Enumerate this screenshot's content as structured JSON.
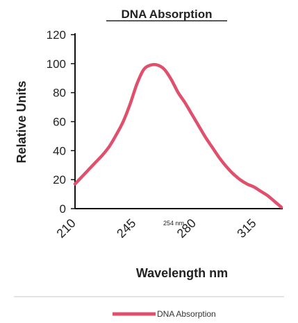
{
  "chart_data": {
    "type": "line",
    "title": "DNA Absorption",
    "xlabel": "Wavelength nm",
    "ylabel": "Relative Units",
    "xlim": [
      210,
      330
    ],
    "ylim": [
      0,
      120
    ],
    "x_ticks": [
      "210",
      "245",
      "280",
      "315"
    ],
    "y_ticks": [
      "0",
      "20",
      "40",
      "60",
      "80",
      "100",
      "120"
    ],
    "annotation": "254 nm",
    "grid": false,
    "legend_position": "bottom",
    "series": [
      {
        "name": "DNA Absorption",
        "color": "#e0506c",
        "x": [
          210,
          214,
          218,
          222,
          226,
          230,
          234,
          238,
          242,
          246,
          250,
          254,
          258,
          262,
          266,
          270,
          274,
          278,
          282,
          286,
          290,
          294,
          298,
          302,
          306,
          310,
          314,
          318,
          322,
          326,
          330
        ],
        "y": [
          17,
          22,
          27,
          32,
          37,
          43,
          51,
          60,
          72,
          86,
          96,
          99,
          99,
          96,
          89,
          80,
          73,
          65,
          57,
          49,
          42,
          35,
          29,
          24,
          20,
          17,
          15,
          12,
          9,
          5,
          1
        ]
      }
    ]
  }
}
